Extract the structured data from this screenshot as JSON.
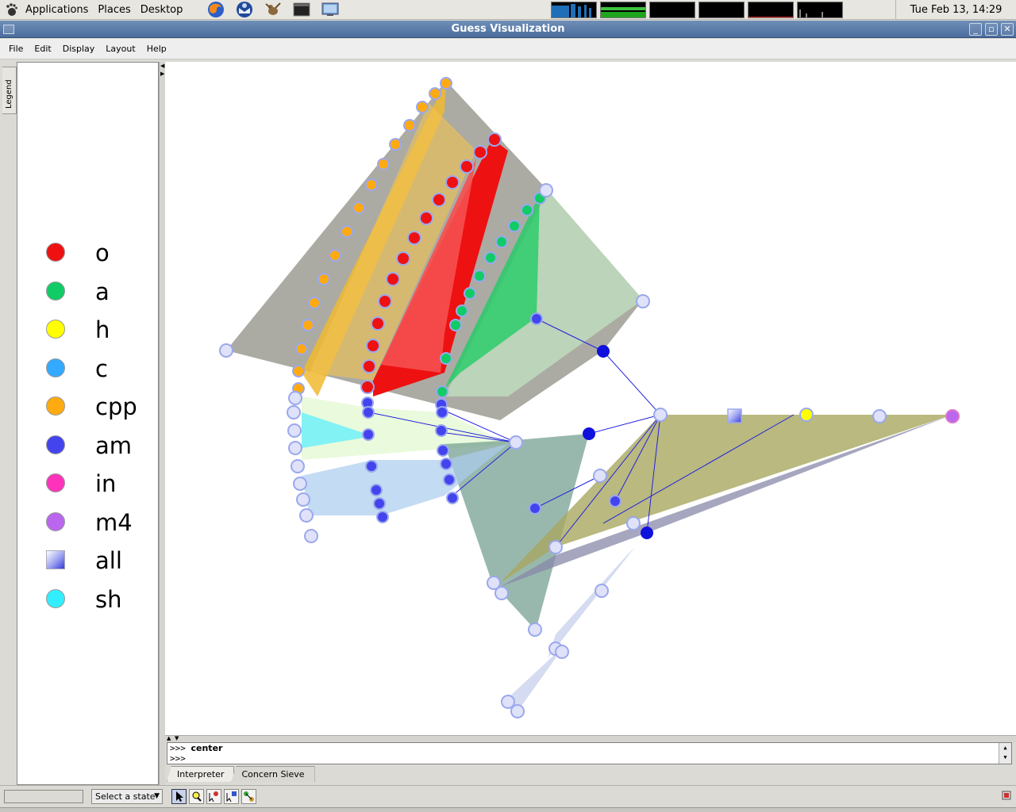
{
  "panel": {
    "menus": [
      "Applications",
      "Places",
      "Desktop"
    ],
    "launchers": [
      "firefox-icon",
      "thunderbird-icon",
      "gimp-icon",
      "terminal-icon",
      "remote-desktop-icon"
    ],
    "clock": "Tue Feb 13, 14:29"
  },
  "window": {
    "title": "Guess Visualization",
    "controls": [
      "minimize-icon",
      "maximize-icon",
      "close-icon"
    ]
  },
  "menubar": {
    "items": [
      "File",
      "Edit",
      "Display",
      "Layout",
      "Help"
    ]
  },
  "legend": {
    "tab_label": "Legend",
    "items": [
      {
        "label": "o",
        "color": "#ee1111",
        "shape": "circle"
      },
      {
        "label": "a",
        "color": "#11cc66",
        "shape": "circle"
      },
      {
        "label": "h",
        "color": "#ffff00",
        "shape": "circle"
      },
      {
        "label": "c",
        "color": "#33aaff",
        "shape": "circle"
      },
      {
        "label": "cpp",
        "color": "#ffaa11",
        "shape": "circle"
      },
      {
        "label": "am",
        "color": "#4444ee",
        "shape": "circle"
      },
      {
        "label": "in",
        "color": "#ff33bb",
        "shape": "circle"
      },
      {
        "label": "m4",
        "color": "#bb66ee",
        "shape": "circle"
      },
      {
        "label": "all",
        "color": "#5555ee",
        "shape": "square"
      },
      {
        "label": "sh",
        "color": "#33eeff",
        "shape": "circle"
      }
    ]
  },
  "console": {
    "prompt": ">>>",
    "lines": [
      "center",
      ""
    ]
  },
  "tabs": [
    "Interpreter",
    "Concern Sieve"
  ],
  "statusbar": {
    "state_select": "Select a state",
    "tools": [
      "pointer-tool-icon",
      "zoom-tool-icon",
      "node-edit-tool-icon",
      "select-tool-icon",
      "link-tool-icon"
    ]
  }
}
